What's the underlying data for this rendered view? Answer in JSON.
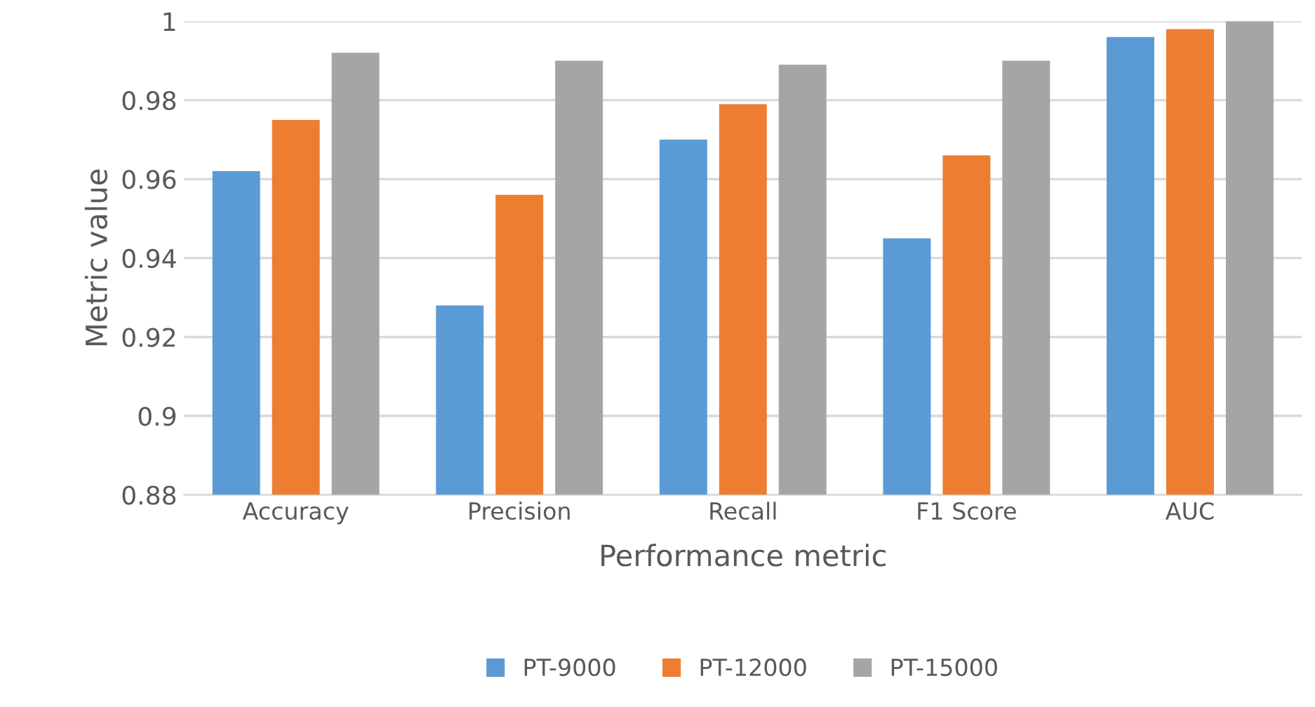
{
  "chart_data": {
    "type": "bar",
    "xlabel": "Performance metric",
    "ylabel": "Metric value",
    "categories": [
      "Accuracy",
      "Precision",
      "Recall",
      "F1 Score",
      "AUC"
    ],
    "series": [
      {
        "name": "PT-9000",
        "color": "#5b9bd5",
        "values": [
          0.962,
          0.928,
          0.97,
          0.945,
          0.996
        ]
      },
      {
        "name": "PT-12000",
        "color": "#ed7d31",
        "values": [
          0.975,
          0.956,
          0.979,
          0.966,
          0.998
        ]
      },
      {
        "name": "PT-15000",
        "color": "#a5a5a5",
        "values": [
          0.992,
          0.99,
          0.989,
          0.99,
          1.0
        ]
      }
    ],
    "ylim": [
      0.88,
      1
    ],
    "yticks": [
      0.88,
      0.9,
      0.92,
      0.94,
      0.96,
      0.98,
      1
    ],
    "grid": "y",
    "legend": "bottom"
  }
}
